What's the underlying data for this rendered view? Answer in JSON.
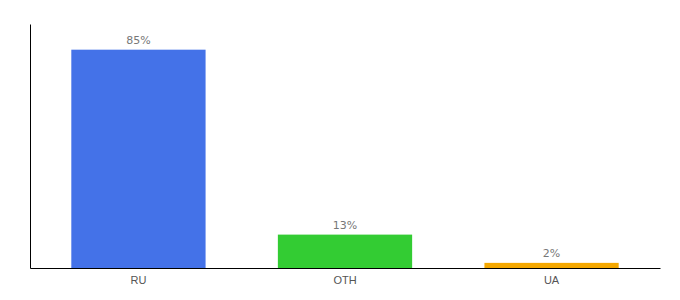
{
  "chart_data": {
    "type": "bar",
    "categories": [
      "RU",
      "OTH",
      "UA"
    ],
    "values": [
      85,
      13,
      2
    ],
    "colors": [
      "#4472e8",
      "#33cc33",
      "#f5a800"
    ],
    "value_labels": [
      "85%",
      "13%",
      "2%"
    ],
    "data_labels": true,
    "ylim": [
      0,
      95
    ],
    "tick_labels": "x"
  }
}
